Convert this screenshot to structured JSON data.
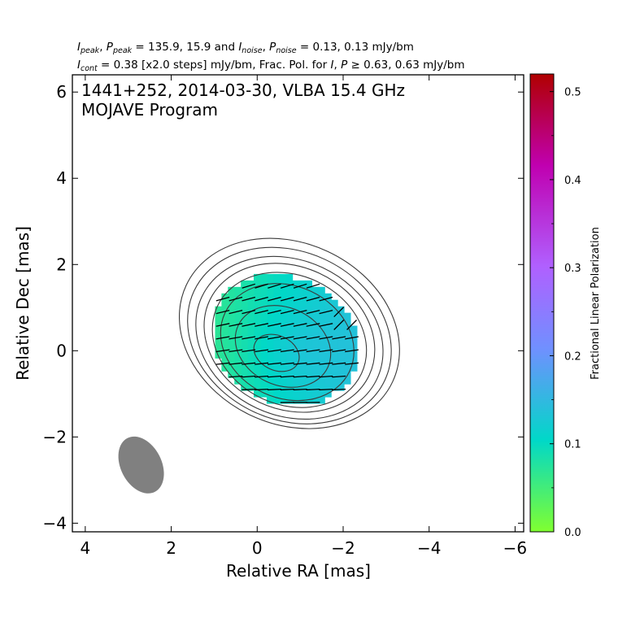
{
  "header": {
    "line1": {
      "ipeak_sym": "I",
      "ipeak_sub": "peak",
      "ppeak_sym": "P",
      "ppeak_sub": "peak",
      "mid": " = 135.9, 15.9 and ",
      "inoise_sym": "I",
      "inoise_sub": "noise",
      "pnoise_sym": "P",
      "pnoise_sub": "noise",
      "tail": " = 0.13, 0.13 mJy/bm",
      "sep": ", "
    },
    "line2": {
      "icont_sym": "I",
      "icont_sub": "cont",
      "mid": " = 0.38 [x2.0 steps] mJy/bm, Frac. Pol. for ",
      "i_sym": "I",
      "sep": ", ",
      "p_sym": "P",
      "tail": " ≥ 0.63, 0.63 mJy/bm"
    }
  },
  "chart_data": {
    "type": "heatmap",
    "inset_title_line1": "1441+252, 2014-03-30, VLBA 15.4 GHz",
    "inset_title_line2": "MOJAVE Program",
    "xlabel": "Relative RA [mas]",
    "ylabel": "Relative Dec [mas]",
    "xlim": [
      4.3,
      -6.2
    ],
    "ylim": [
      -4.2,
      6.4
    ],
    "x_inverted": true,
    "xticks": [
      4,
      2,
      0,
      -2,
      -4,
      -6
    ],
    "xtick_labels": [
      "4",
      "2",
      "0",
      "−2",
      "−4",
      "−6"
    ],
    "yticks": [
      6,
      4,
      2,
      0,
      -2,
      -4
    ],
    "ytick_labels": [
      "6",
      "4",
      "2",
      "0",
      "−2",
      "−4"
    ],
    "grid": false,
    "colorbar": {
      "label": "Fractional Linear Polarization",
      "range": [
        0.0,
        0.52
      ],
      "ticks": [
        0.0,
        0.1,
        0.2,
        0.3,
        0.4,
        0.5
      ],
      "tick_labels": [
        "0.0",
        "0.1",
        "0.2",
        "0.3",
        "0.4",
        "0.5"
      ],
      "colors": [
        "#80ff30",
        "#00d8c8",
        "#7090ff",
        "#b060ff",
        "#c000b0",
        "#b00000"
      ]
    },
    "beam": {
      "center_ra": 2.7,
      "center_dec": -2.65,
      "major_mas": 1.4,
      "minor_mas": 0.95,
      "pa_deg": -27,
      "color": "#808080"
    },
    "stokes_i_peak_mJy_bm": 135.9,
    "contour_base_mJy_bm": 0.38,
    "contour_step_factor": 2.0,
    "contours_mas": [
      {
        "cx": -0.45,
        "cy": -0.05,
        "a": 0.55,
        "b": 0.4,
        "pa": 25
      },
      {
        "cx": -0.6,
        "cy": 0.1,
        "a": 1.15,
        "b": 0.9,
        "pa": 25
      },
      {
        "cx": -0.7,
        "cy": 0.2,
        "a": 1.6,
        "b": 1.3,
        "pa": 25
      },
      {
        "cx": -0.75,
        "cy": 0.25,
        "a": 1.85,
        "b": 1.5,
        "pa": 25
      },
      {
        "cx": -0.75,
        "cy": 0.3,
        "a": 2.05,
        "b": 1.65,
        "pa": 25
      },
      {
        "cx": -0.75,
        "cy": 0.3,
        "a": 2.25,
        "b": 1.8,
        "pa": 25
      },
      {
        "cx": -0.75,
        "cy": 0.35,
        "a": 2.45,
        "b": 1.95,
        "pa": 25
      },
      {
        "cx": -0.75,
        "cy": 0.4,
        "a": 2.65,
        "b": 2.1,
        "pa": 25
      }
    ],
    "fracpol_region_mas": {
      "cx": -0.65,
      "cy": 0.25,
      "a": 1.75,
      "b": 1.45,
      "pa": 25
    },
    "fracpol_grid": {
      "ra_min": -2.4,
      "ra_max": 1.0,
      "dec_min": -1.3,
      "dec_max": 1.8,
      "step": 0.15,
      "min_value": 0.07,
      "max_value": 0.15
    },
    "evpa_grid": {
      "ra_min": -2.2,
      "ra_max": 1.0,
      "dec_min": -1.2,
      "dec_max": 1.7,
      "step": 0.3,
      "length_mas": 0.32
    }
  }
}
